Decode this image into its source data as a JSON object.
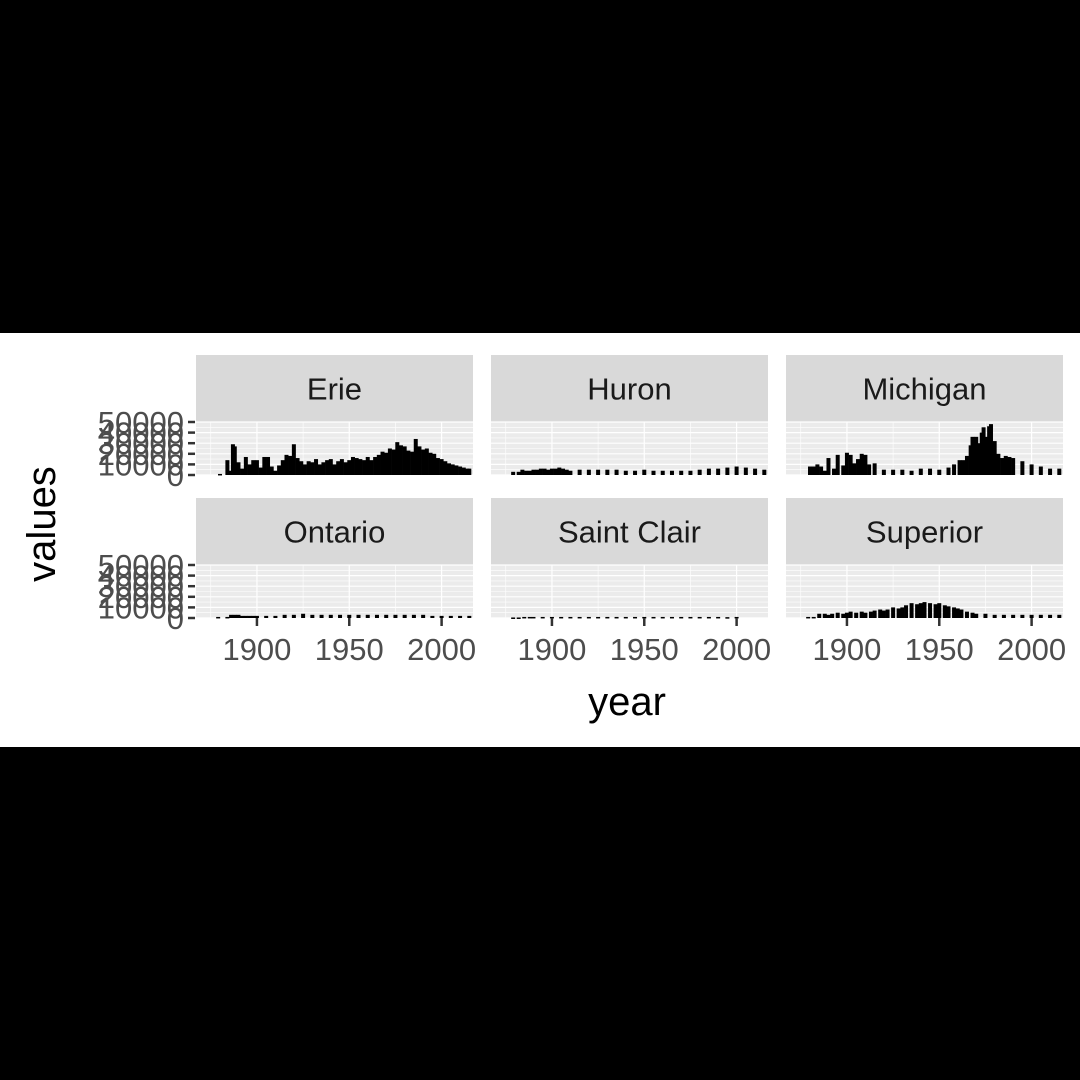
{
  "chart_data": {
    "type": "bar",
    "facet_by": "lake",
    "facets": [
      "Erie",
      "Huron",
      "Michigan",
      "Ontario",
      "Saint Clair",
      "Superior"
    ],
    "xlabel": "year",
    "ylabel": "values",
    "x_ticks": [
      1900,
      1950,
      2000
    ],
    "y_ticks": [
      0,
      10000,
      20000,
      30000,
      40000,
      50000
    ],
    "y_tick_labels": [
      "0",
      "10000",
      "20000",
      "30000",
      "40000",
      "50000"
    ],
    "xlim": [
      1867,
      2017
    ],
    "ylim": [
      0,
      50000
    ],
    "grid": true,
    "series": [
      {
        "name": "Erie",
        "x": [
          1880,
          1884,
          1885,
          1887,
          1888,
          1889,
          1890,
          1892,
          1894,
          1896,
          1898,
          1900,
          1902,
          1904,
          1906,
          1908,
          1910,
          1912,
          1914,
          1916,
          1918,
          1920,
          1922,
          1924,
          1926,
          1928,
          1930,
          1932,
          1934,
          1936,
          1938,
          1940,
          1942,
          1944,
          1946,
          1948,
          1950,
          1952,
          1954,
          1956,
          1958,
          1960,
          1962,
          1964,
          1966,
          1968,
          1970,
          1972,
          1974,
          1976,
          1978,
          1980,
          1982,
          1984,
          1986,
          1988,
          1990,
          1992,
          1994,
          1996,
          1998,
          2000,
          2002,
          2004,
          2006,
          2008,
          2010,
          2012,
          2014,
          2015
        ],
        "y": [
          1000,
          14000,
          4000,
          29000,
          27000,
          5000,
          12000,
          6000,
          17000,
          10000,
          14000,
          14000,
          7000,
          17000,
          17000,
          8000,
          4000,
          9000,
          14000,
          19000,
          18000,
          29000,
          16000,
          13000,
          10000,
          13000,
          12000,
          15000,
          10000,
          12000,
          14000,
          15000,
          10000,
          13000,
          15000,
          12000,
          14000,
          17000,
          16000,
          15000,
          14000,
          17000,
          14000,
          17000,
          19000,
          22000,
          21000,
          25000,
          24000,
          31000,
          28000,
          27000,
          23000,
          22000,
          34000,
          27000,
          24000,
          25000,
          21000,
          20000,
          16000,
          15000,
          13000,
          11000,
          10000,
          9000,
          8000,
          7000,
          6000,
          6000
        ]
      },
      {
        "name": "Huron",
        "x": [
          1879,
          1882,
          1884,
          1886,
          1888,
          1890,
          1892,
          1894,
          1896,
          1898,
          1900,
          1902,
          1904,
          1906,
          1908,
          1910,
          1915,
          1920,
          1925,
          1930,
          1935,
          1940,
          1945,
          1950,
          1955,
          1960,
          1965,
          1970,
          1975,
          1980,
          1985,
          1990,
          1995,
          2000,
          2005,
          2010,
          2015
        ],
        "y": [
          3000,
          3000,
          5000,
          4000,
          4000,
          5000,
          5000,
          6000,
          6000,
          5000,
          6000,
          6000,
          7000,
          6000,
          5000,
          4000,
          5000,
          5000,
          5000,
          5000,
          5000,
          4000,
          4000,
          5000,
          4000,
          4000,
          4000,
          4000,
          4000,
          5000,
          6000,
          6000,
          7000,
          8000,
          7000,
          6000,
          5000
        ]
      },
      {
        "name": "Michigan",
        "x": [
          1880,
          1882,
          1884,
          1886,
          1888,
          1890,
          1893,
          1895,
          1898,
          1900,
          1902,
          1904,
          1906,
          1908,
          1910,
          1912,
          1915,
          1920,
          1925,
          1930,
          1935,
          1940,
          1945,
          1950,
          1955,
          1958,
          1961,
          1963,
          1965,
          1967,
          1968,
          1970,
          1971,
          1972,
          1973,
          1974,
          1975,
          1976,
          1977,
          1978,
          1979,
          1980,
          1982,
          1984,
          1986,
          1988,
          1990,
          1995,
          2000,
          2005,
          2010,
          2015
        ],
        "y": [
          8000,
          8000,
          10000,
          8000,
          4000,
          16000,
          6000,
          19000,
          9000,
          21000,
          19000,
          11000,
          15000,
          20000,
          19000,
          10000,
          11000,
          5000,
          5000,
          5000,
          4000,
          6000,
          6000,
          5000,
          7000,
          10000,
          14000,
          14000,
          18000,
          28000,
          36000,
          36000,
          20000,
          30000,
          40000,
          45000,
          28000,
          36000,
          46000,
          48000,
          30000,
          32000,
          20000,
          16000,
          18000,
          17000,
          16000,
          13000,
          10000,
          8000,
          6000,
          6000
        ]
      },
      {
        "name": "Ontario",
        "x": [
          1879,
          1884,
          1886,
          1888,
          1890,
          1892,
          1894,
          1896,
          1898,
          1900,
          1905,
          1910,
          1915,
          1920,
          1925,
          1930,
          1935,
          1940,
          1945,
          1950,
          1955,
          1960,
          1965,
          1970,
          1975,
          1980,
          1985,
          1990,
          1995,
          2000,
          2005,
          2010,
          2015
        ],
        "y": [
          1000,
          1000,
          3000,
          3000,
          3000,
          2000,
          2000,
          2000,
          2000,
          2000,
          2000,
          2000,
          3000,
          3000,
          4000,
          3000,
          3000,
          3000,
          3000,
          3000,
          3000,
          3000,
          3000,
          3000,
          3000,
          3000,
          3000,
          3000,
          2000,
          2000,
          2000,
          2000,
          2000
        ]
      },
      {
        "name": "Saint Clair",
        "x": [
          1879,
          1882,
          1885,
          1888,
          1890,
          1895,
          1900,
          1905,
          1910,
          1915,
          1920,
          1925,
          1930,
          1935,
          1940,
          1945,
          1950,
          1955,
          1960,
          1965,
          1970,
          1975,
          1980,
          1985,
          1990,
          1995,
          2000
        ],
        "y": [
          500,
          500,
          1000,
          1000,
          1000,
          1000,
          1000,
          1000,
          1000,
          1000,
          1000,
          1000,
          1000,
          1000,
          1000,
          1000,
          1000,
          1000,
          1000,
          1000,
          1000,
          1000,
          1000,
          1000,
          1000,
          800,
          1000
        ]
      },
      {
        "name": "Superior",
        "x": [
          1879,
          1882,
          1885,
          1888,
          1890,
          1892,
          1895,
          1898,
          1900,
          1902,
          1905,
          1908,
          1910,
          1913,
          1915,
          1918,
          1920,
          1922,
          1925,
          1928,
          1930,
          1932,
          1935,
          1938,
          1940,
          1942,
          1945,
          1948,
          1950,
          1953,
          1955,
          1958,
          1960,
          1962,
          1965,
          1968,
          1970,
          1975,
          1980,
          1985,
          1990,
          1995,
          2000,
          2005,
          2010,
          2015
        ],
        "y": [
          1000,
          1000,
          4000,
          4000,
          3000,
          4000,
          5000,
          4000,
          5000,
          6000,
          5000,
          6000,
          5000,
          6000,
          7000,
          8000,
          7000,
          8000,
          10000,
          9000,
          10000,
          12000,
          14000,
          13000,
          14000,
          15000,
          14000,
          13000,
          14000,
          12000,
          11000,
          10000,
          9000,
          8000,
          6000,
          5000,
          4000,
          4000,
          3000,
          3000,
          3000,
          3000,
          3000,
          3000,
          3000,
          3000
        ]
      }
    ]
  }
}
